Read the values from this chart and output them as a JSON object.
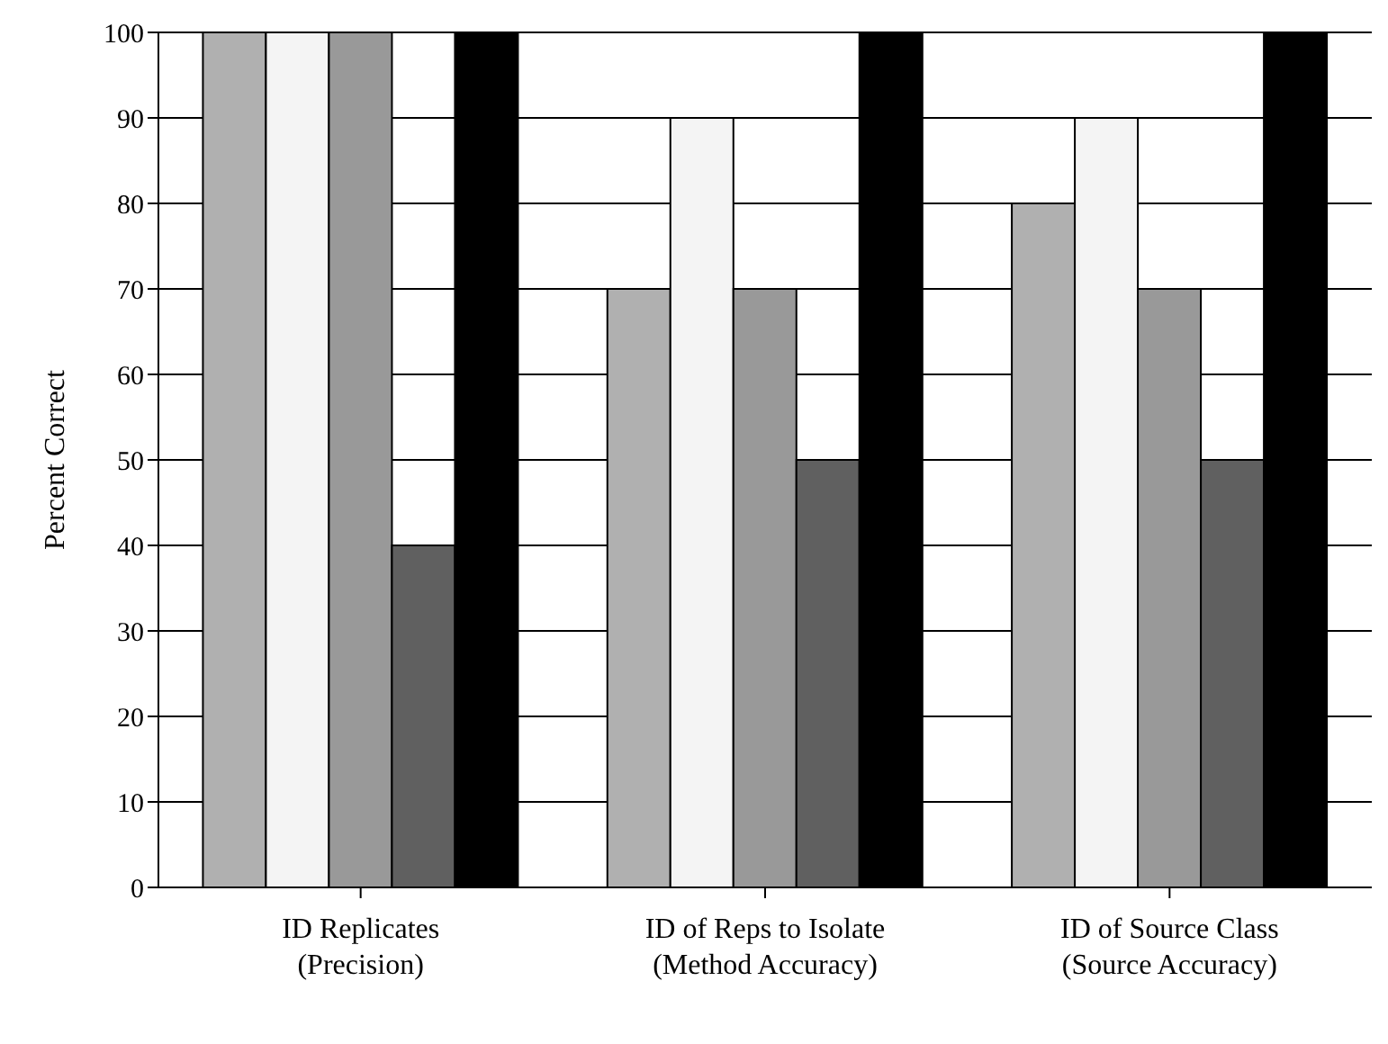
{
  "chart_data": {
    "type": "bar",
    "ylabel": "Percent Correct",
    "categories": [
      "ID Replicates\n(Precision)",
      "ID of Reps to Isolate\n(Method Accuracy)",
      "ID of Source Class\n(Source Accuracy)"
    ],
    "series": [
      {
        "color": "#b0b0b0",
        "values": [
          100,
          70,
          80
        ]
      },
      {
        "color": "#f4f4f4",
        "values": [
          100,
          90,
          90
        ]
      },
      {
        "color": "#999999",
        "values": [
          100,
          70,
          70
        ]
      },
      {
        "color": "#606060",
        "values": [
          40,
          50,
          50
        ]
      },
      {
        "color": "#000000",
        "values": [
          100,
          100,
          100
        ]
      }
    ],
    "ylim": [
      0,
      100
    ],
    "yticks": [
      0,
      10,
      20,
      30,
      40,
      50,
      60,
      70,
      80,
      90,
      100
    ],
    "grid": "y",
    "legend": false
  }
}
